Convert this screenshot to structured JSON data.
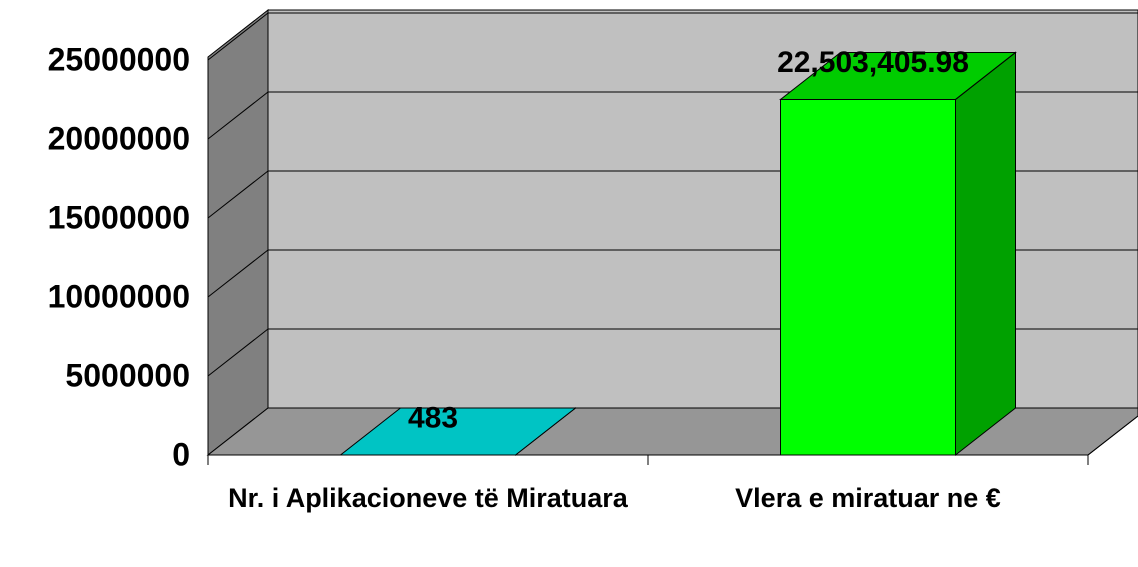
{
  "chart_data": {
    "type": "bar3d",
    "categories": [
      "Nr. i  Aplikacioneve të Miratuara",
      "Vlera e miratuar ne €"
    ],
    "values": [
      483,
      22503405.98
    ],
    "value_labels": [
      "483",
      "22,503,405.98"
    ],
    "colors": [
      "#00c4c4",
      "#00ff00"
    ],
    "ylim": [
      0,
      25000000
    ],
    "yticks": [
      0,
      5000000,
      10000000,
      15000000,
      20000000,
      25000000
    ],
    "grid": true
  }
}
